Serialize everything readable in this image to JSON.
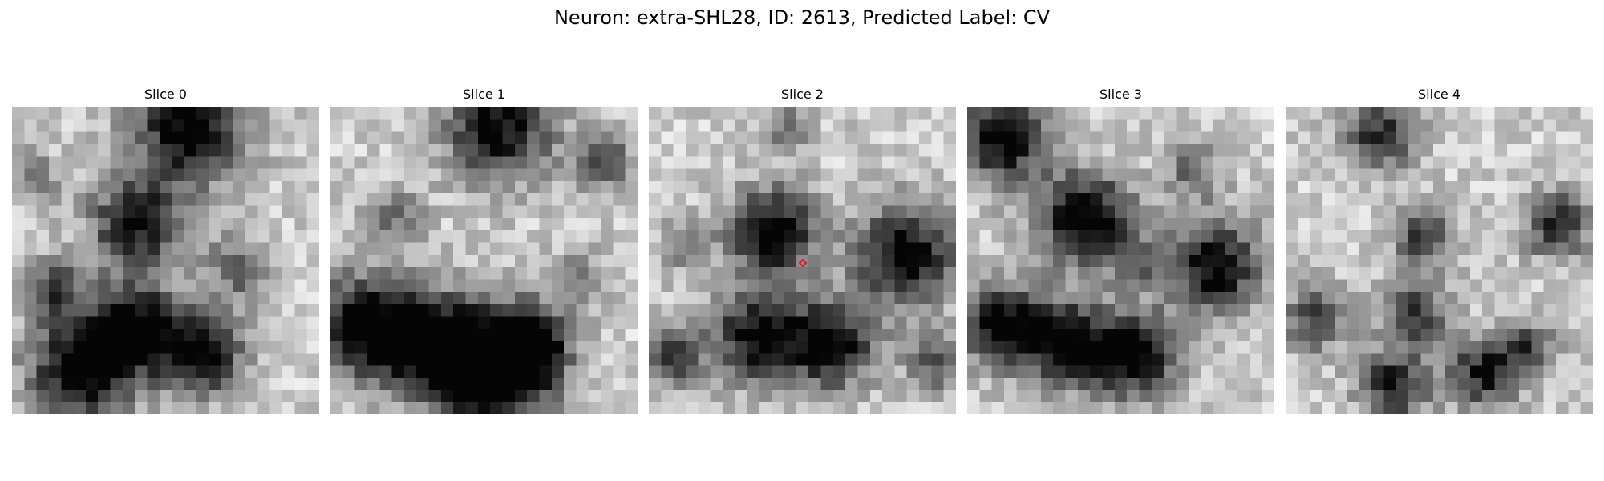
{
  "figure": {
    "title": "Neuron: extra-SHL28, ID: 2613, Predicted Label: CV"
  },
  "panels": [
    {
      "title": "Slice 0",
      "seed": 11
    },
    {
      "title": "Slice 1",
      "seed": 23
    },
    {
      "title": "Slice 2",
      "seed": 37,
      "has_marker": true
    },
    {
      "title": "Slice 3",
      "seed": 51
    },
    {
      "title": "Slice 4",
      "seed": 67
    }
  ],
  "image": {
    "grid_size": 25,
    "colormap": "gray",
    "marker_color": "#e8141b",
    "marker_shape": "diamond"
  }
}
